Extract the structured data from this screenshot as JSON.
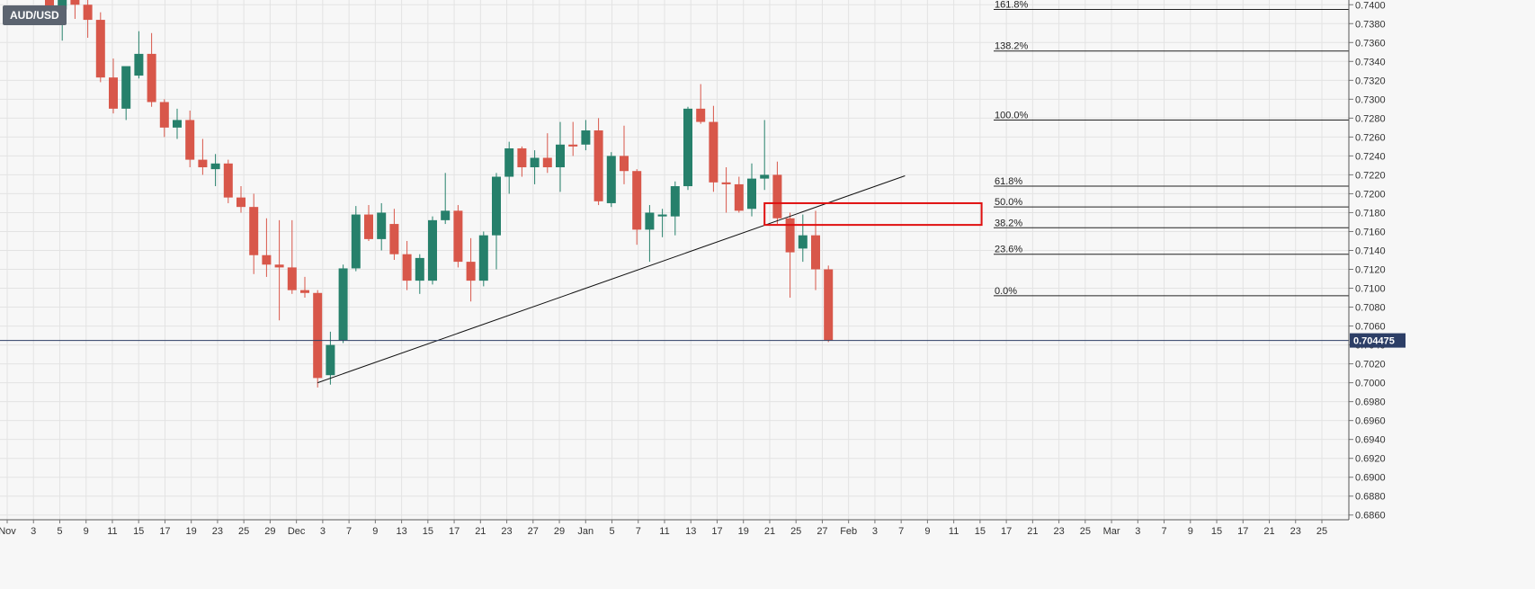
{
  "symbol": "AUD/USD",
  "colors": {
    "up": "#26806b",
    "down": "#d8574a",
    "grid": "#e3e3e3",
    "background": "#f7f7f7",
    "current_price_line": "#2c3e66",
    "zone": "#e01010",
    "trendline": "#111111"
  },
  "chart_data": {
    "type": "candlestick",
    "title": "",
    "ylim": [
      0.6855,
      0.7405
    ],
    "y_ticks": [
      "0.7400",
      "0.7380",
      "0.7360",
      "0.7340",
      "0.7320",
      "0.7300",
      "0.7280",
      "0.7260",
      "0.7240",
      "0.7220",
      "0.7200",
      "0.7180",
      "0.7160",
      "0.7140",
      "0.7120",
      "0.7100",
      "0.7080",
      "0.7060",
      "0.7040",
      "0.7020",
      "0.7000",
      "0.6980",
      "0.6960",
      "0.6940",
      "0.6920",
      "0.6900",
      "0.6880",
      "0.6860"
    ],
    "x_ticks": [
      "Nov",
      "3",
      "5",
      "9",
      "11",
      "15",
      "17",
      "19",
      "23",
      "25",
      "29",
      "Dec",
      "3",
      "7",
      "9",
      "13",
      "15",
      "17",
      "21",
      "23",
      "27",
      "29",
      "Jan",
      "5",
      "7",
      "11",
      "13",
      "17",
      "19",
      "21",
      "25",
      "27",
      "Feb",
      "3",
      "7",
      "9",
      "11",
      "15",
      "17",
      "21",
      "23",
      "25",
      "Mar",
      "3",
      "7",
      "9",
      "15",
      "17",
      "21",
      "23",
      "25"
    ],
    "current_price": 0.704475,
    "current_price_label": "0.704475",
    "candles": [
      {
        "o": 0.7405,
        "h": 0.7415,
        "l": 0.738,
        "c": 0.7395
      },
      {
        "o": 0.7395,
        "h": 0.742,
        "l": 0.7362,
        "c": 0.741
      },
      {
        "o": 0.7405,
        "h": 0.7415,
        "l": 0.7385,
        "c": 0.74
      },
      {
        "o": 0.74,
        "h": 0.742,
        "l": 0.7365,
        "c": 0.7384
      },
      {
        "o": 0.7384,
        "h": 0.7392,
        "l": 0.7318,
        "c": 0.7323
      },
      {
        "o": 0.7323,
        "h": 0.7343,
        "l": 0.7285,
        "c": 0.729
      },
      {
        "o": 0.729,
        "h": 0.7333,
        "l": 0.7278,
        "c": 0.7335
      },
      {
        "o": 0.7325,
        "h": 0.7372,
        "l": 0.7322,
        "c": 0.7348
      },
      {
        "o": 0.7348,
        "h": 0.737,
        "l": 0.7292,
        "c": 0.7297
      },
      {
        "o": 0.7297,
        "h": 0.73,
        "l": 0.726,
        "c": 0.727
      },
      {
        "o": 0.727,
        "h": 0.729,
        "l": 0.7258,
        "c": 0.7278
      },
      {
        "o": 0.7278,
        "h": 0.7288,
        "l": 0.7228,
        "c": 0.7236
      },
      {
        "o": 0.7236,
        "h": 0.7258,
        "l": 0.722,
        "c": 0.7228
      },
      {
        "o": 0.7226,
        "h": 0.7242,
        "l": 0.7208,
        "c": 0.7232
      },
      {
        "o": 0.7232,
        "h": 0.7236,
        "l": 0.719,
        "c": 0.7196
      },
      {
        "o": 0.7196,
        "h": 0.7208,
        "l": 0.718,
        "c": 0.7186
      },
      {
        "o": 0.7186,
        "h": 0.72,
        "l": 0.7115,
        "c": 0.7135
      },
      {
        "o": 0.7135,
        "h": 0.7174,
        "l": 0.7112,
        "c": 0.7125
      },
      {
        "o": 0.7125,
        "h": 0.7172,
        "l": 0.7066,
        "c": 0.7122
      },
      {
        "o": 0.7122,
        "h": 0.7172,
        "l": 0.7094,
        "c": 0.7098
      },
      {
        "o": 0.7098,
        "h": 0.7112,
        "l": 0.709,
        "c": 0.7095
      },
      {
        "o": 0.7095,
        "h": 0.7098,
        "l": 0.6995,
        "c": 0.7005
      },
      {
        "o": 0.7008,
        "h": 0.7054,
        "l": 0.6998,
        "c": 0.704
      },
      {
        "o": 0.7045,
        "h": 0.7125,
        "l": 0.7042,
        "c": 0.7121
      },
      {
        "o": 0.7121,
        "h": 0.7187,
        "l": 0.7118,
        "c": 0.7178
      },
      {
        "o": 0.7178,
        "h": 0.7188,
        "l": 0.715,
        "c": 0.7152
      },
      {
        "o": 0.7152,
        "h": 0.719,
        "l": 0.714,
        "c": 0.718
      },
      {
        "o": 0.7168,
        "h": 0.7184,
        "l": 0.713,
        "c": 0.7136
      },
      {
        "o": 0.7136,
        "h": 0.715,
        "l": 0.7098,
        "c": 0.7108
      },
      {
        "o": 0.7108,
        "h": 0.7136,
        "l": 0.7094,
        "c": 0.7132
      },
      {
        "o": 0.7108,
        "h": 0.7176,
        "l": 0.7104,
        "c": 0.7172
      },
      {
        "o": 0.7172,
        "h": 0.7222,
        "l": 0.7168,
        "c": 0.7182
      },
      {
        "o": 0.7182,
        "h": 0.7188,
        "l": 0.7122,
        "c": 0.7128
      },
      {
        "o": 0.7128,
        "h": 0.7153,
        "l": 0.7086,
        "c": 0.7108
      },
      {
        "o": 0.7108,
        "h": 0.716,
        "l": 0.7102,
        "c": 0.7156
      },
      {
        "o": 0.7156,
        "h": 0.7222,
        "l": 0.712,
        "c": 0.7218
      },
      {
        "o": 0.7218,
        "h": 0.7255,
        "l": 0.72,
        "c": 0.7248
      },
      {
        "o": 0.7248,
        "h": 0.725,
        "l": 0.7218,
        "c": 0.7228
      },
      {
        "o": 0.7228,
        "h": 0.7246,
        "l": 0.721,
        "c": 0.7238
      },
      {
        "o": 0.7238,
        "h": 0.7264,
        "l": 0.7222,
        "c": 0.7228
      },
      {
        "o": 0.7228,
        "h": 0.7276,
        "l": 0.7202,
        "c": 0.7252
      },
      {
        "o": 0.7252,
        "h": 0.7276,
        "l": 0.724,
        "c": 0.725
      },
      {
        "o": 0.7252,
        "h": 0.7278,
        "l": 0.7246,
        "c": 0.7267
      },
      {
        "o": 0.7267,
        "h": 0.728,
        "l": 0.7188,
        "c": 0.7192
      },
      {
        "o": 0.719,
        "h": 0.7244,
        "l": 0.7186,
        "c": 0.724
      },
      {
        "o": 0.724,
        "h": 0.7272,
        "l": 0.721,
        "c": 0.7224
      },
      {
        "o": 0.7224,
        "h": 0.7226,
        "l": 0.7146,
        "c": 0.7162
      },
      {
        "o": 0.7162,
        "h": 0.7188,
        "l": 0.7128,
        "c": 0.718
      },
      {
        "o": 0.7176,
        "h": 0.7184,
        "l": 0.7154,
        "c": 0.7178
      },
      {
        "o": 0.7176,
        "h": 0.7213,
        "l": 0.7156,
        "c": 0.7208
      },
      {
        "o": 0.7208,
        "h": 0.7292,
        "l": 0.7204,
        "c": 0.729
      },
      {
        "o": 0.729,
        "h": 0.7316,
        "l": 0.7274,
        "c": 0.7276
      },
      {
        "o": 0.7276,
        "h": 0.7293,
        "l": 0.7202,
        "c": 0.7212
      },
      {
        "o": 0.7212,
        "h": 0.7228,
        "l": 0.718,
        "c": 0.721
      },
      {
        "o": 0.721,
        "h": 0.7218,
        "l": 0.718,
        "c": 0.7182
      },
      {
        "o": 0.7184,
        "h": 0.7232,
        "l": 0.7176,
        "c": 0.7216
      },
      {
        "o": 0.7216,
        "h": 0.7278,
        "l": 0.7204,
        "c": 0.722
      },
      {
        "o": 0.722,
        "h": 0.7234,
        "l": 0.7168,
        "c": 0.7174
      },
      {
        "o": 0.7174,
        "h": 0.718,
        "l": 0.709,
        "c": 0.7138
      },
      {
        "o": 0.7142,
        "h": 0.7178,
        "l": 0.7128,
        "c": 0.7156
      },
      {
        "o": 0.7156,
        "h": 0.7182,
        "l": 0.7098,
        "c": 0.712
      },
      {
        "o": 0.712,
        "h": 0.7124,
        "l": 0.7043,
        "c": 0.7045
      }
    ],
    "fibonacci": [
      {
        "label": "161.8%",
        "value": 0.7395
      },
      {
        "label": "138.2%",
        "value": 0.7351
      },
      {
        "label": "100.0%",
        "value": 0.7278
      },
      {
        "label": "61.8%",
        "value": 0.7208
      },
      {
        "label": "50.0%",
        "value": 0.7186
      },
      {
        "label": "38.2%",
        "value": 0.7164
      },
      {
        "label": "23.6%",
        "value": 0.7136
      },
      {
        "label": "0.0%",
        "value": 0.7092
      }
    ],
    "trendline": {
      "from": {
        "candle": 21,
        "price": 0.7
      },
      "to": {
        "candle": 67,
        "price": 0.7219
      }
    },
    "zone": {
      "from_candle": 56,
      "to_candle": 73,
      "top": 0.719,
      "bottom": 0.7167
    }
  }
}
